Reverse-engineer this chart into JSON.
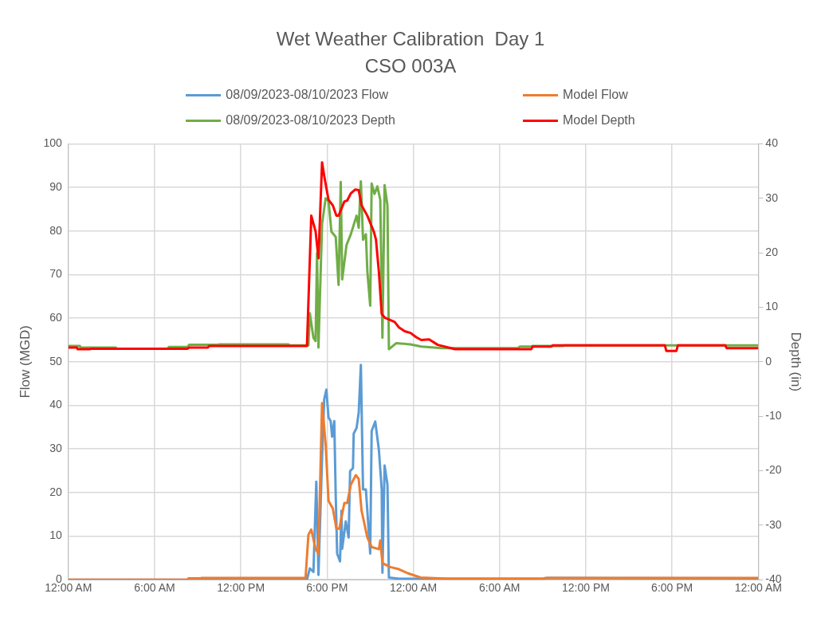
{
  "chart_data": {
    "type": "line",
    "title": "Wet Weather Calibration  Day 1",
    "subtitle": "CSO 003A",
    "ylabel": "Flow (MGD)",
    "y2label": "Depth (in)",
    "xlim": [
      "2023-08-09T00:00",
      "2023-08-11T00:00"
    ],
    "xticks": [
      {
        "value": "2023-08-09T00:00",
        "label": "12:00 AM"
      },
      {
        "value": "2023-08-09T06:00",
        "label": "6:00 AM"
      },
      {
        "value": "2023-08-09T12:00",
        "label": "12:00 PM"
      },
      {
        "value": "2023-08-09T18:00",
        "label": "6:00 PM"
      },
      {
        "value": "2023-08-10T00:00",
        "label": "12:00 AM"
      },
      {
        "value": "2023-08-10T06:00",
        "label": "6:00 AM"
      },
      {
        "value": "2023-08-10T12:00",
        "label": "12:00 PM"
      },
      {
        "value": "2023-08-10T18:00",
        "label": "6:00 PM"
      },
      {
        "value": "2023-08-11T00:00",
        "label": "12:00 AM"
      }
    ],
    "ylim": [
      0,
      100
    ],
    "yticks": [
      0,
      10,
      20,
      30,
      40,
      50,
      60,
      70,
      80,
      90,
      100
    ],
    "y2lim": [
      -40,
      40
    ],
    "y2ticks": [
      -40,
      -30,
      -20,
      -10,
      0,
      10,
      20,
      30,
      40
    ],
    "grid": true,
    "legend": "top",
    "series": [
      {
        "name": "08/09/2023-08/10/2023 Flow",
        "color": "#5b9bd5",
        "x": [
          "2023-08-09T00:00",
          "2023-08-09T16:36",
          "2023-08-09T16:48",
          "2023-08-09T17:03",
          "2023-08-09T17:15",
          "2023-08-09T17:24",
          "2023-08-09T17:39",
          "2023-08-09T17:48",
          "2023-08-09T17:57",
          "2023-08-09T18:06",
          "2023-08-09T18:15",
          "2023-08-09T18:21",
          "2023-08-09T18:30",
          "2023-08-09T18:36",
          "2023-08-09T18:42",
          "2023-08-09T18:54",
          "2023-08-09T19:00",
          "2023-08-09T19:03",
          "2023-08-09T19:18",
          "2023-08-09T19:30",
          "2023-08-09T19:36",
          "2023-08-09T19:48",
          "2023-08-09T19:51",
          "2023-08-09T20:03",
          "2023-08-09T20:12",
          "2023-08-09T20:21",
          "2023-08-09T20:30",
          "2023-08-09T20:42",
          "2023-08-09T20:48",
          "2023-08-09T21:00",
          "2023-08-09T21:06",
          "2023-08-09T21:21",
          "2023-08-09T21:36",
          "2023-08-09T21:48",
          "2023-08-09T21:51",
          "2023-08-09T22:00",
          "2023-08-09T22:12",
          "2023-08-09T22:18",
          "2023-08-09T23:00",
          "2023-08-10T09:00",
          "2023-08-10T09:12",
          "2023-08-11T00:00"
        ],
        "values": [
          0,
          0,
          2.6,
          1.8,
          22.5,
          1.1,
          28,
          41.4,
          43.6,
          37.2,
          36.4,
          32.8,
          36.4,
          19.4,
          6,
          4.2,
          15.8,
          7.1,
          13.4,
          9.7,
          24.9,
          25.6,
          33.5,
          34.8,
          38.3,
          49.3,
          20.7,
          20.7,
          15.8,
          6,
          34.1,
          36.3,
          29.9,
          20.7,
          1.6,
          26.2,
          21.8,
          0.5,
          0.2,
          0.2,
          0.4,
          0.3
        ]
      },
      {
        "name": "Model Flow",
        "color": "#ed7d31",
        "x": [
          "2023-08-09T00:00",
          "2023-08-09T08:18",
          "2023-08-09T08:21",
          "2023-08-09T09:12",
          "2023-08-09T09:15",
          "2023-08-09T16:30",
          "2023-08-09T16:42",
          "2023-08-09T16:54",
          "2023-08-09T17:12",
          "2023-08-09T17:24",
          "2023-08-09T17:39",
          "2023-08-09T17:54",
          "2023-08-09T18:06",
          "2023-08-09T18:24",
          "2023-08-09T18:39",
          "2023-08-09T18:51",
          "2023-08-09T19:12",
          "2023-08-09T19:24",
          "2023-08-09T19:39",
          "2023-08-09T20:00",
          "2023-08-09T20:12",
          "2023-08-09T20:24",
          "2023-08-09T20:48",
          "2023-08-09T21:06",
          "2023-08-09T21:36",
          "2023-08-09T21:42",
          "2023-08-09T21:51",
          "2023-08-09T22:24",
          "2023-08-09T23:00",
          "2023-08-09T23:36",
          "2023-08-10T00:30",
          "2023-08-10T02:24",
          "2023-08-10T09:12",
          "2023-08-10T09:18",
          "2023-08-11T00:00"
        ],
        "values": [
          0,
          0,
          0.3,
          0.3,
          0.4,
          0.4,
          10.3,
          11.5,
          7.1,
          6.0,
          40.5,
          31.0,
          18.1,
          16.3,
          11.7,
          11.7,
          17.6,
          17.6,
          21.8,
          24.0,
          23.1,
          15.8,
          9.7,
          7.5,
          7.0,
          9.0,
          3.8,
          2.9,
          2.4,
          1.5,
          0.5,
          0.2,
          0.2,
          0.4,
          0.4
        ]
      },
      {
        "name": "08/09/2023-08/10/2023 Depth",
        "color": "#70ad47",
        "axis": "y2",
        "x": [
          "2023-08-09T00:00",
          "2023-08-09T00:48",
          "2023-08-09T00:51",
          "2023-08-09T03:18",
          "2023-08-09T03:21",
          "2023-08-09T06:54",
          "2023-08-09T07:00",
          "2023-08-09T08:18",
          "2023-08-09T08:24",
          "2023-08-09T10:24",
          "2023-08-09T10:30",
          "2023-08-09T15:18",
          "2023-08-09T15:24",
          "2023-08-09T16:42",
          "2023-08-09T16:48",
          "2023-08-09T17:03",
          "2023-08-09T17:12",
          "2023-08-09T17:18",
          "2023-08-09T17:24",
          "2023-08-09T17:39",
          "2023-08-09T17:54",
          "2023-08-09T18:06",
          "2023-08-09T18:18",
          "2023-08-09T18:36",
          "2023-08-09T18:48",
          "2023-08-09T18:57",
          "2023-08-09T19:03",
          "2023-08-09T19:21",
          "2023-08-09T19:39",
          "2023-08-09T20:03",
          "2023-08-09T20:12",
          "2023-08-09T20:21",
          "2023-08-09T20:30",
          "2023-08-09T20:42",
          "2023-08-09T20:48",
          "2023-08-09T21:00",
          "2023-08-09T21:06",
          "2023-08-09T21:18",
          "2023-08-09T21:30",
          "2023-08-09T21:42",
          "2023-08-09T21:51",
          "2023-08-09T22:00",
          "2023-08-09T22:12",
          "2023-08-09T22:18",
          "2023-08-09T22:48",
          "2023-08-09T23:48",
          "2023-08-10T00:33",
          "2023-08-10T02:00",
          "2023-08-10T07:18",
          "2023-08-10T07:24",
          "2023-08-10T08:12",
          "2023-08-10T08:18",
          "2023-08-10T10:24",
          "2023-08-10T10:30",
          "2023-08-11T00:00"
        ],
        "values": [
          2.9,
          2.9,
          2.6,
          2.6,
          2.4,
          2.4,
          2.7,
          2.7,
          3.1,
          3.1,
          3.2,
          3.2,
          3.0,
          3.0,
          8.9,
          4.4,
          3.8,
          19.9,
          2.6,
          25.3,
          30.0,
          29.5,
          23.9,
          22.9,
          14.1,
          33.0,
          15.1,
          21.4,
          23.4,
          26.8,
          24.6,
          33.1,
          22.4,
          23.4,
          16.6,
          10.3,
          32.7,
          30.8,
          32.2,
          29.7,
          4.4,
          32.4,
          28.7,
          2.3,
          3.4,
          3.2,
          2.8,
          2.5,
          2.5,
          2.8,
          2.8,
          2.9,
          2.9,
          3.0,
          3.0
        ]
      },
      {
        "name": "Model Depth",
        "color": "#ff0000",
        "axis": "y2",
        "x": [
          "2023-08-09T00:00",
          "2023-08-09T00:36",
          "2023-08-09T00:39",
          "2023-08-09T01:30",
          "2023-08-09T01:33",
          "2023-08-09T08:18",
          "2023-08-09T08:24",
          "2023-08-09T09:42",
          "2023-08-09T09:48",
          "2023-08-09T16:36",
          "2023-08-09T16:54",
          "2023-08-09T17:12",
          "2023-08-09T17:24",
          "2023-08-09T17:39",
          "2023-08-09T17:48",
          "2023-08-09T18:06",
          "2023-08-09T18:24",
          "2023-08-09T18:39",
          "2023-08-09T18:48",
          "2023-08-09T19:12",
          "2023-08-09T19:24",
          "2023-08-09T19:39",
          "2023-08-09T19:57",
          "2023-08-09T20:12",
          "2023-08-09T20:24",
          "2023-08-09T20:48",
          "2023-08-09T21:15",
          "2023-08-09T21:24",
          "2023-08-09T21:36",
          "2023-08-09T21:48",
          "2023-08-09T22:00",
          "2023-08-09T22:42",
          "2023-08-09T23:00",
          "2023-08-09T23:24",
          "2023-08-09T23:48",
          "2023-08-10T00:12",
          "2023-08-10T00:33",
          "2023-08-10T01:06",
          "2023-08-10T01:42",
          "2023-08-10T02:54",
          "2023-08-10T08:12",
          "2023-08-10T08:18",
          "2023-08-10T09:36",
          "2023-08-10T09:42",
          "2023-08-10T17:30",
          "2023-08-10T17:36",
          "2023-08-10T18:18",
          "2023-08-10T18:24",
          "2023-08-10T21:42",
          "2023-08-10T21:48",
          "2023-08-11T00:00"
        ],
        "values": [
          2.6,
          2.6,
          2.3,
          2.3,
          2.4,
          2.4,
          2.6,
          2.6,
          2.9,
          2.9,
          26.8,
          23.9,
          19.0,
          36.6,
          34.1,
          29.7,
          28.7,
          26.8,
          26.8,
          29.4,
          29.6,
          30.9,
          31.6,
          31.5,
          28.7,
          26.8,
          23.9,
          22.4,
          16.6,
          8.8,
          8.1,
          7.3,
          6.3,
          5.6,
          5.3,
          4.5,
          4.0,
          4.1,
          3.1,
          2.3,
          2.3,
          2.8,
          2.8,
          3.0,
          3.0,
          2.0,
          2.0,
          3.0,
          3.0,
          2.5,
          2.5
        ]
      }
    ]
  }
}
